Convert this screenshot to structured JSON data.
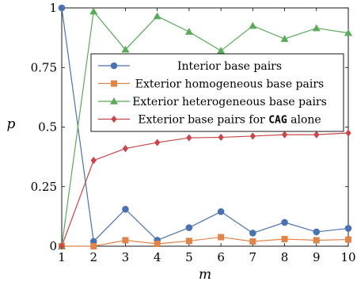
{
  "chart_data": {
    "type": "line",
    "xlabel": "m",
    "ylabel": "p",
    "xlim": [
      1,
      10
    ],
    "ylim": [
      0,
      1
    ],
    "x": [
      1,
      2,
      3,
      4,
      5,
      6,
      7,
      8,
      9,
      10
    ],
    "xticks": [
      "1",
      "2",
      "3",
      "4",
      "5",
      "6",
      "7",
      "8",
      "9",
      "10"
    ],
    "yticks": [
      {
        "value": 0,
        "label": "0"
      },
      {
        "value": 0.25,
        "label": "0.25"
      },
      {
        "value": 0.5,
        "label": "0.5"
      },
      {
        "value": 0.75,
        "label": "0.75"
      },
      {
        "value": 1,
        "label": "1"
      }
    ],
    "grid": false,
    "legend_position": "upper-right",
    "series": [
      {
        "name": "Interior base pairs",
        "color": "#4a72b0",
        "marker": "circle",
        "values": [
          1.0,
          0.02,
          0.155,
          0.025,
          0.078,
          0.145,
          0.055,
          0.1,
          0.06,
          0.075
        ]
      },
      {
        "name": "Exterior homogeneous base pairs",
        "color": "#e0844a",
        "marker": "square",
        "values": [
          0.0,
          0.0,
          0.025,
          0.01,
          0.022,
          0.038,
          0.02,
          0.03,
          0.025,
          0.028
        ]
      },
      {
        "name": "Exterior heterogeneous base pairs",
        "color": "#5aaa5a",
        "marker": "triangle",
        "values": [
          0.0,
          0.985,
          0.825,
          0.965,
          0.9,
          0.82,
          0.925,
          0.87,
          0.915,
          0.895
        ]
      },
      {
        "name_prefix": "Exterior base pairs for ",
        "name_code": "CAG",
        "name_suffix": " alone",
        "color": "#c8464a",
        "marker": "diamond",
        "values": [
          0.0,
          0.36,
          0.41,
          0.435,
          0.455,
          0.457,
          0.462,
          0.468,
          0.468,
          0.475
        ]
      }
    ]
  }
}
